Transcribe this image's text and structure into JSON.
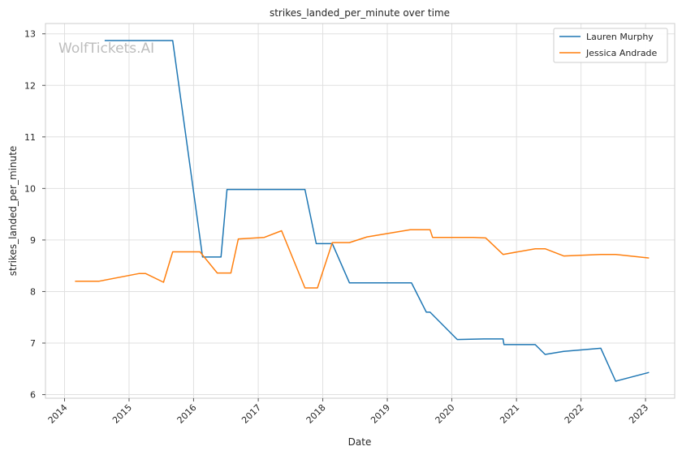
{
  "chart_data": {
    "type": "line",
    "title": "strikes_landed_per_minute over time",
    "xlabel": "Date",
    "ylabel": "strikes_landed_per_minute",
    "watermark": "WolfTickets.AI",
    "xlim": [
      "2013-09-15",
      "2023-06-15"
    ],
    "ylim": [
      5.93,
      13.2
    ],
    "x_ticks": [
      "2014",
      "2015",
      "2016",
      "2017",
      "2018",
      "2019",
      "2020",
      "2021",
      "2022",
      "2023"
    ],
    "y_ticks": [
      6,
      7,
      8,
      9,
      10,
      11,
      12,
      13
    ],
    "grid": true,
    "legend_position": "top-right",
    "series": [
      {
        "name": "Lauren Murphy",
        "color": "#1f77b4",
        "points": [
          [
            "2014-08-16",
            12.87
          ],
          [
            "2015-09-05",
            12.87
          ],
          [
            "2016-02-21",
            8.67
          ],
          [
            "2016-06-04",
            8.67
          ],
          [
            "2016-07-08",
            9.98
          ],
          [
            "2017-09-22",
            9.98
          ],
          [
            "2017-11-25",
            8.93
          ],
          [
            "2018-02-24",
            8.93
          ],
          [
            "2018-06-01",
            8.17
          ],
          [
            "2019-05-18",
            8.17
          ],
          [
            "2019-08-10",
            7.6
          ],
          [
            "2019-08-31",
            7.6
          ],
          [
            "2020-02-01",
            7.07
          ],
          [
            "2020-07-01",
            7.08
          ],
          [
            "2020-10-17",
            7.08
          ],
          [
            "2020-10-22",
            6.97
          ],
          [
            "2021-04-17",
            6.97
          ],
          [
            "2021-06-12",
            6.78
          ],
          [
            "2021-09-25",
            6.84
          ],
          [
            "2022-04-23",
            6.9
          ],
          [
            "2022-07-16",
            6.26
          ],
          [
            "2023-01-21",
            6.43
          ]
        ]
      },
      {
        "name": "Jessica Andrade",
        "color": "#ff7f0e",
        "points": [
          [
            "2014-03-01",
            8.2
          ],
          [
            "2014-07-16",
            8.2
          ],
          [
            "2015-02-28",
            8.35
          ],
          [
            "2015-04-04",
            8.35
          ],
          [
            "2015-07-15",
            8.18
          ],
          [
            "2015-09-05",
            8.77
          ],
          [
            "2016-02-06",
            8.77
          ],
          [
            "2016-05-14",
            8.36
          ],
          [
            "2016-07-30",
            8.36
          ],
          [
            "2016-09-10",
            9.02
          ],
          [
            "2017-02-04",
            9.05
          ],
          [
            "2017-05-13",
            9.18
          ],
          [
            "2017-09-22",
            8.07
          ],
          [
            "2017-12-02",
            8.07
          ],
          [
            "2018-02-24",
            8.95
          ],
          [
            "2018-06-01",
            8.95
          ],
          [
            "2018-09-08",
            9.06
          ],
          [
            "2019-05-11",
            9.2
          ],
          [
            "2019-08-31",
            9.2
          ],
          [
            "2019-09-14",
            9.05
          ],
          [
            "2020-05-01",
            9.05
          ],
          [
            "2020-07-11",
            9.04
          ],
          [
            "2020-10-17",
            8.72
          ],
          [
            "2021-04-17",
            8.83
          ],
          [
            "2021-06-12",
            8.83
          ],
          [
            "2021-09-25",
            8.69
          ],
          [
            "2022-04-23",
            8.72
          ],
          [
            "2022-07-16",
            8.72
          ],
          [
            "2023-01-21",
            8.65
          ]
        ]
      }
    ]
  }
}
